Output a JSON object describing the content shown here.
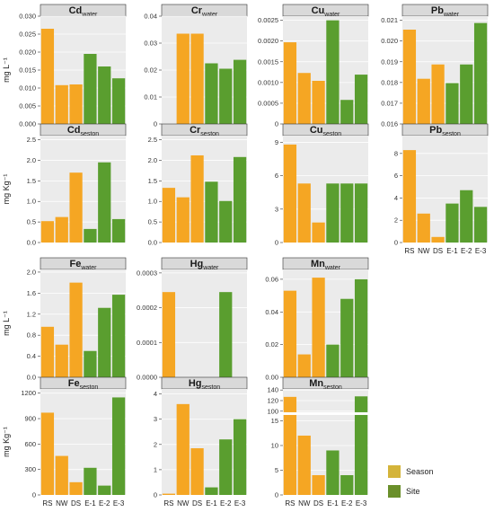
{
  "chart_data": [
    {
      "type": "bar",
      "element": "Cd",
      "medium": "water",
      "categories": [
        "RS",
        "NW",
        "DS",
        "E-1",
        "E-2",
        "E-3"
      ],
      "values": [
        0.0265,
        0.0108,
        0.011,
        0.0195,
        0.016,
        0.0127
      ],
      "ylim": [
        0,
        0.03
      ],
      "yticks": [
        "0.000",
        "0.005",
        "0.010",
        "0.015",
        "0.020",
        "0.025",
        "0.030"
      ],
      "ytick_values": [
        0,
        0.005,
        0.01,
        0.015,
        0.02,
        0.025,
        0.03
      ],
      "ylabel": "mg L⁻¹"
    },
    {
      "type": "bar",
      "element": "Cr",
      "medium": "water",
      "categories": [
        "RS",
        "NW",
        "DS",
        "E-1",
        "E-2",
        "E-3"
      ],
      "values": [
        0.0,
        0.0335,
        0.0335,
        0.0225,
        0.0205,
        0.0238
      ],
      "ylim": [
        0,
        0.04
      ],
      "yticks": [
        "0",
        "0.01",
        "0.02",
        "0.03",
        "0.04"
      ],
      "ytick_values": [
        0,
        0.01,
        0.02,
        0.03,
        0.04
      ],
      "ylabel": ""
    },
    {
      "type": "bar",
      "element": "Cu",
      "medium": "water",
      "categories": [
        "RS",
        "NW",
        "DS",
        "E-1",
        "E-2",
        "E-3"
      ],
      "values": [
        0.00197,
        0.00123,
        0.00104,
        0.0025,
        0.00058,
        0.00119
      ],
      "ylim": [
        0,
        0.0026
      ],
      "yticks": [
        "0",
        "0.0005",
        "0.0010",
        "0.0015",
        "0.0020",
        "0.0025"
      ],
      "ytick_values": [
        0,
        0.0005,
        0.001,
        0.0015,
        0.002,
        0.0025
      ],
      "ylabel": ""
    },
    {
      "type": "bar",
      "element": "Pb",
      "medium": "water",
      "categories": [
        "RS",
        "NW",
        "DS",
        "E-1",
        "E-2",
        "E-3"
      ],
      "values": [
        0.02055,
        0.01818,
        0.01887,
        0.01797,
        0.01887,
        0.02087
      ],
      "ylim": [
        0.016,
        0.0212
      ],
      "yticks": [
        "0.016",
        "0.017",
        "0.018",
        "0.019",
        "0.020",
        "0.021"
      ],
      "ytick_values": [
        0.016,
        0.017,
        0.018,
        0.019,
        0.02,
        0.021
      ],
      "ylabel": ""
    },
    {
      "type": "bar",
      "element": "Cd",
      "medium": "seston",
      "categories": [
        "RS",
        "NW",
        "DS",
        "E-1",
        "E-2",
        "E-3"
      ],
      "values": [
        0.52,
        0.62,
        1.7,
        0.33,
        1.95,
        0.57
      ],
      "ylim": [
        0,
        2.6
      ],
      "yticks": [
        "0.0",
        "0.5",
        "1.0",
        "1.5",
        "2.0",
        "2.5"
      ],
      "ytick_values": [
        0,
        0.5,
        1,
        1.5,
        2,
        2.5
      ],
      "ylabel": "mg Kg⁻¹"
    },
    {
      "type": "bar",
      "element": "Cr",
      "medium": "seston",
      "categories": [
        "RS",
        "NW",
        "DS",
        "E-1",
        "E-2",
        "E-3"
      ],
      "values": [
        1.33,
        1.1,
        2.12,
        1.48,
        1.01,
        2.08
      ],
      "ylim": [
        0,
        2.6
      ],
      "yticks": [
        "0.0",
        "0.5",
        "1.0",
        "1.5",
        "2.0",
        "2.5"
      ],
      "ytick_values": [
        0,
        0.5,
        1,
        1.5,
        2,
        2.5
      ],
      "ylabel": ""
    },
    {
      "type": "bar",
      "element": "Cu",
      "medium": "seston",
      "categories": [
        "RS",
        "NW",
        "DS",
        "E-1",
        "E-2",
        "E-3"
      ],
      "values": [
        8.8,
        5.3,
        1.8,
        5.3,
        5.3,
        5.3
      ],
      "ylim": [
        0,
        9.6
      ],
      "yticks": [
        "0",
        "3",
        "6",
        "9"
      ],
      "ytick_values": [
        0,
        3,
        6,
        9
      ],
      "ylabel": ""
    },
    {
      "type": "bar",
      "element": "Pb",
      "medium": "seston",
      "categories": [
        "RS",
        "NW",
        "DS",
        "E-1",
        "E-2",
        "E-3"
      ],
      "values": [
        8.3,
        2.6,
        0.5,
        3.5,
        4.7,
        3.2
      ],
      "ylim": [
        0,
        9.6
      ],
      "yticks": [
        "0",
        "2",
        "4",
        "6",
        "8"
      ],
      "ytick_values": [
        0,
        2,
        4,
        6,
        8
      ],
      "ylabel": ""
    },
    {
      "type": "bar",
      "element": "Fe",
      "medium": "water",
      "categories": [
        "RS",
        "NW",
        "DS",
        "E-1",
        "E-2",
        "E-3"
      ],
      "values": [
        0.96,
        0.62,
        1.8,
        0.5,
        1.32,
        1.57
      ],
      "ylim": [
        0,
        2.05
      ],
      "yticks": [
        "0.0",
        "0.4",
        "0.8",
        "1.2",
        "1.6",
        "2.0"
      ],
      "ytick_values": [
        0,
        0.4,
        0.8,
        1.2,
        1.6,
        2.0
      ],
      "ylabel": "mg L⁻¹"
    },
    {
      "type": "bar",
      "element": "Hg",
      "medium": "water",
      "categories": [
        "RS",
        "NW",
        "DS",
        "E-1",
        "E-2",
        "E-3"
      ],
      "values": [
        0.000245,
        0,
        0,
        0,
        0.000245,
        0
      ],
      "ylim": [
        0,
        0.00031
      ],
      "yticks": [
        "0.0000",
        "0.0001",
        "0.0002",
        "0.0003"
      ],
      "ytick_values": [
        0,
        0.0001,
        0.0002,
        0.0003
      ],
      "ylabel": ""
    },
    {
      "type": "bar",
      "element": "Mn",
      "medium": "water",
      "categories": [
        "RS",
        "NW",
        "DS",
        "E-1",
        "E-2",
        "E-3"
      ],
      "values": [
        0.053,
        0.014,
        0.061,
        0.02,
        0.048,
        0.06
      ],
      "ylim": [
        0,
        0.066
      ],
      "yticks": [
        "0.00",
        "0.02",
        "0.04",
        "0.06"
      ],
      "ytick_values": [
        0,
        0.02,
        0.04,
        0.06
      ],
      "ylabel": ""
    },
    {
      "type": "bar",
      "element": "Fe",
      "medium": "seston",
      "categories": [
        "RS",
        "NW",
        "DS",
        "E-1",
        "E-2",
        "E-3"
      ],
      "values": [
        970,
        460,
        150,
        320,
        110,
        1150
      ],
      "ylim": [
        0,
        1250
      ],
      "yticks": [
        "0",
        "300",
        "600",
        "900",
        "1200"
      ],
      "ytick_values": [
        0,
        300,
        600,
        900,
        1200
      ],
      "ylabel": "mg Kg⁻¹"
    },
    {
      "type": "bar",
      "element": "Hg",
      "medium": "seston",
      "categories": [
        "RS",
        "NW",
        "DS",
        "E-1",
        "E-2",
        "E-3"
      ],
      "values": [
        0.05,
        3.6,
        1.85,
        0.3,
        2.2,
        3.0
      ],
      "ylim": [
        0,
        4.2
      ],
      "yticks": [
        "0",
        "1",
        "2",
        "3",
        "4"
      ],
      "ytick_values": [
        0,
        1,
        2,
        3,
        4
      ],
      "ylabel": ""
    },
    {
      "type": "bar",
      "element": "Mn",
      "medium": "seston",
      "categories": [
        "RS",
        "NW",
        "DS",
        "E-1",
        "E-2",
        "E-3"
      ],
      "values": [
        127,
        12,
        4,
        9,
        4,
        128
      ],
      "axis_break": true,
      "yticks": [
        "0",
        "5",
        "10",
        "15",
        "100",
        "120",
        "140"
      ],
      "ytick_values": [
        0,
        5,
        10,
        15,
        100,
        120,
        140
      ],
      "ylabel": ""
    }
  ],
  "series_colors": {
    "Season": "#f5a623",
    "Site": "#5a9e2f"
  },
  "bar_series": [
    "Season",
    "Season",
    "Season",
    "Site",
    "Site",
    "Site"
  ],
  "legend": {
    "items": [
      {
        "label": "Season",
        "color": "#d4b43a"
      },
      {
        "label": "Site",
        "color": "#6a8f2a"
      }
    ],
    "placement": "bottom-right"
  },
  "panel_bg": "#ebebeb",
  "strip_bg": "#d9d9d9"
}
